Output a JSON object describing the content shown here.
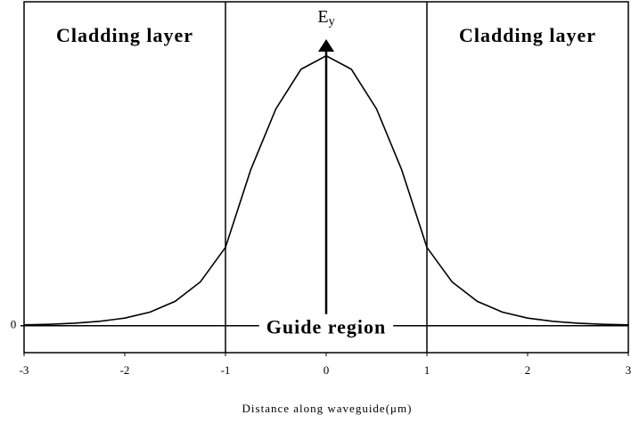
{
  "chart_data": {
    "type": "line",
    "annotations": [
      "Cladding layer",
      "Cladding layer",
      "Guide region"
    ],
    "ylabel": "E",
    "ylabel_subscript": "y",
    "xlabel": "Distance along waveguide(μm)",
    "x": [
      -3,
      -2.75,
      -2.5,
      -2.25,
      -2,
      -1.75,
      -1.5,
      -1.25,
      -1,
      -0.75,
      -0.5,
      -0.25,
      0,
      0.25,
      0.5,
      0.75,
      1,
      1.25,
      1.5,
      1.75,
      2,
      2.25,
      2.5,
      2.75,
      3
    ],
    "series": [
      {
        "color": "#000000",
        "values": [
          0.003,
          0.005,
          0.009,
          0.016,
          0.028,
          0.05,
          0.09,
          0.162,
          0.29,
          0.577,
          0.803,
          0.95,
          1,
          0.95,
          0.803,
          0.577,
          0.29,
          0.162,
          0.09,
          0.05,
          0.028,
          0.016,
          0.009,
          0.005,
          0.003
        ]
      }
    ],
    "boundaries": [
      -1,
      1
    ],
    "xlim": [
      -3,
      3
    ],
    "xticks": [
      -3,
      -2,
      -1,
      0,
      1,
      2,
      3
    ],
    "ylim": [
      -0.1,
      1.2
    ],
    "yticks": [
      0
    ]
  }
}
